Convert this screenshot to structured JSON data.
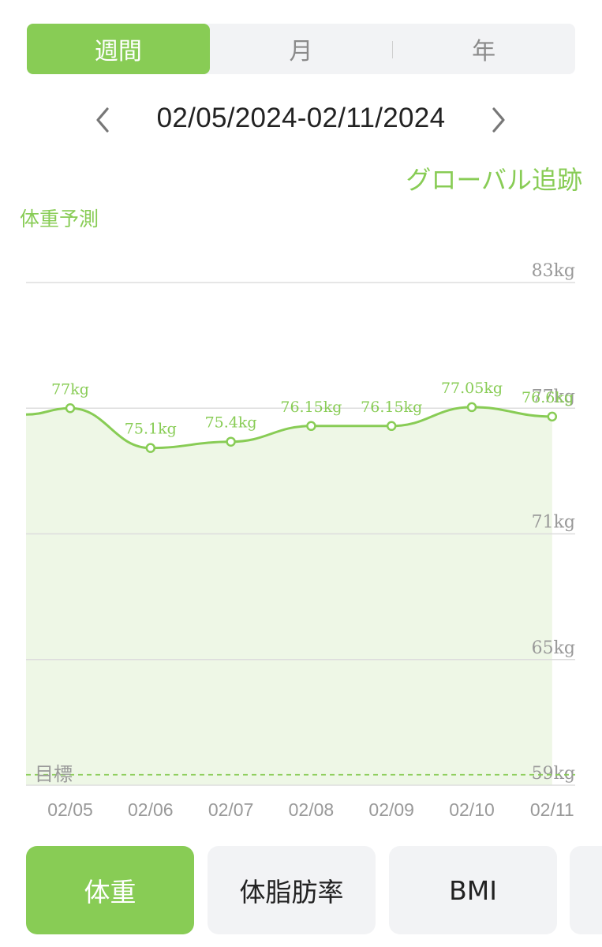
{
  "period_tabs": [
    {
      "label": "週間",
      "active": true
    },
    {
      "label": "月",
      "active": false
    },
    {
      "label": "年",
      "active": false
    }
  ],
  "date_nav": {
    "range": "02/05/2024-02/11/2024",
    "prev_icon": "chevron-left-icon",
    "next_icon": "chevron-right-icon"
  },
  "global_link": "グローバル追跡",
  "predict_label": "体重予測",
  "colors": {
    "accent": "#88cc55",
    "fill": "#eef7e6",
    "grid": "#dddddd",
    "axis_text": "#999999"
  },
  "chart_data": {
    "type": "area",
    "x": [
      "02/05",
      "02/06",
      "02/07",
      "02/08",
      "02/09",
      "02/10",
      "02/11"
    ],
    "series": [
      {
        "values": [
          77,
          75.1,
          75.4,
          76.15,
          76.15,
          77.05,
          76.6
        ]
      }
    ],
    "data_labels": [
      "77kg",
      "75.1kg",
      "75.4kg",
      "76.15kg",
      "76.15kg",
      "77.05kg",
      "76.6kg"
    ],
    "y_ticks": [
      83,
      77,
      71,
      65,
      59
    ],
    "y_tick_labels": [
      "83kg",
      "77kg",
      "71kg",
      "65kg",
      "59kg"
    ],
    "ylim": [
      59,
      83
    ],
    "target": {
      "label": "目標",
      "value": 59.5
    },
    "grid": true
  },
  "metric_tabs": [
    {
      "label": "体重",
      "active": true
    },
    {
      "label": "体脂肪率",
      "active": false
    },
    {
      "label": "BMI",
      "active": false
    }
  ]
}
